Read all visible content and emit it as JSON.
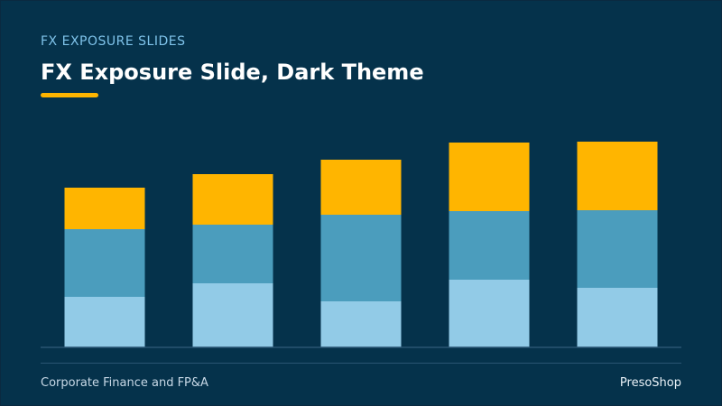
{
  "header": {
    "eyebrow": "FX EXPOSURE SLIDES",
    "title": "FX Exposure Slide, Dark Theme"
  },
  "footer": {
    "left": "Corporate Finance and FP&A",
    "right": "PresoShop"
  },
  "colors": {
    "background": "#05324b",
    "eyebrow": "#7fc3ea",
    "accent": "#ffb500",
    "axis": "#2a5573",
    "series_light": "#92cbe7",
    "series_mid": "#4b9dbd",
    "series_top": "#ffb500"
  },
  "chart_data": {
    "type": "bar",
    "stacked": true,
    "categories": [
      "",
      "",
      "",
      "",
      ""
    ],
    "ylim": [
      0,
      230
    ],
    "grid": false,
    "legend": "none",
    "series": [
      {
        "values": [
          56,
          71,
          51,
          75,
          66
        ],
        "color": "#92cbe7"
      },
      {
        "values": [
          75,
          65,
          96,
          76,
          86
        ],
        "color": "#4b9dbd"
      },
      {
        "values": [
          46,
          56,
          61,
          76,
          76
        ],
        "color": "#ffb500"
      }
    ]
  }
}
